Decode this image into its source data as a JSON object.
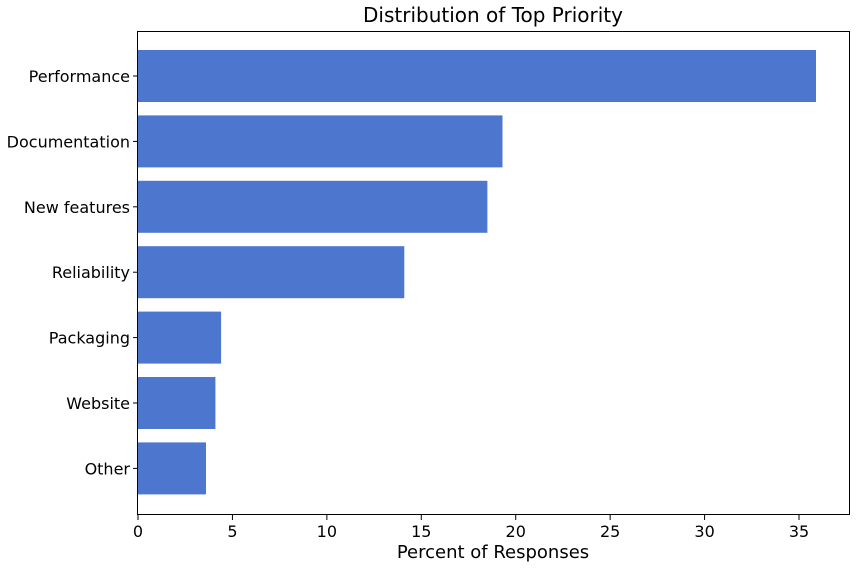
{
  "chart_data": {
    "type": "bar",
    "orientation": "horizontal",
    "title": "Distribution of Top Priority",
    "xlabel": "Percent of Responses",
    "ylabel": "",
    "categories": [
      "Performance",
      "Documentation",
      "New features",
      "Reliability",
      "Packaging",
      "Website",
      "Other"
    ],
    "values": [
      35.9,
      19.3,
      18.5,
      14.1,
      4.4,
      4.1,
      3.6
    ],
    "xlim": [
      0,
      37.7
    ],
    "xticks": [
      0,
      5,
      10,
      15,
      20,
      25,
      30,
      35
    ],
    "grid": false,
    "legend": "none",
    "bar_color": "#4d77cf"
  }
}
